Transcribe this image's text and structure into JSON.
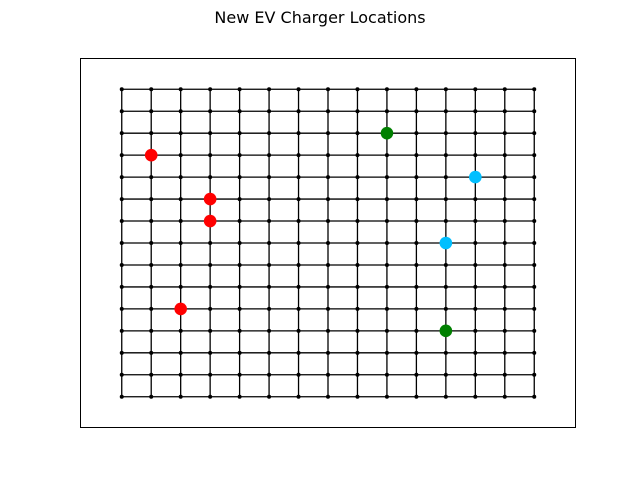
{
  "chart_data": {
    "type": "scatter",
    "title": "New EV Charger Locations",
    "xlabel": "",
    "ylabel": "",
    "axes_visible": false,
    "grid_graph": {
      "columns": 15,
      "rows": 15,
      "x_range": [
        0,
        14
      ],
      "y_range": [
        0,
        14
      ],
      "node_color": "#000000",
      "edge_color": "#000000"
    },
    "xlim": [
      -1.4,
      15.4
    ],
    "ylim": [
      -1.4,
      15.4
    ],
    "series": [
      {
        "color": "#ff0000",
        "points": [
          [
            1,
            11
          ],
          [
            3,
            9
          ],
          [
            3,
            8
          ],
          [
            2,
            4
          ]
        ]
      },
      {
        "color": "#008000",
        "points": [
          [
            9,
            12
          ],
          [
            11,
            3
          ]
        ]
      },
      {
        "color": "#00bfff",
        "points": [
          [
            12,
            10
          ],
          [
            11,
            7
          ]
        ]
      }
    ]
  }
}
